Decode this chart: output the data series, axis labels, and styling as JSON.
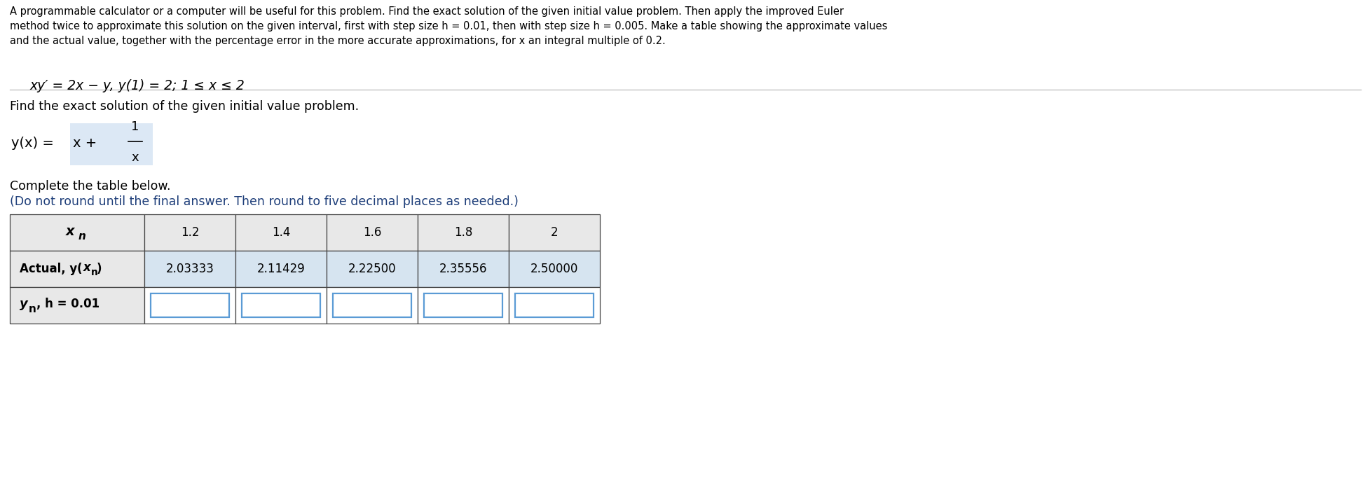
{
  "background_color": "#ffffff",
  "paragraph_text": "A programmable calculator or a computer will be useful for this problem. Find the exact solution of the given initial value problem. Then apply the improved Euler\nmethod twice to approximate this solution on the given interval, first with step size h = 0.01, then with step size h = 0.005. Make a table showing the approximate values\nand the actual value, together with the percentage error in the more accurate approximations, for x an integral multiple of 0.2.",
  "equation_text": "xy′ = 2x − y, y(1) = 2; 1 ≤ x ≤ 2",
  "find_text": "Find the exact solution of the given initial value problem.",
  "complete_text": "Complete the table below.",
  "round_text": "(Do not round until the final answer. Then round to five decimal places as needed.)",
  "table_col_headers": [
    "1.2",
    "1.4",
    "1.6",
    "1.8",
    "2"
  ],
  "row1_values": [
    "2.03333",
    "2.11429",
    "2.22500",
    "2.35556",
    "2.50000"
  ],
  "header_bg": "#e8e8e8",
  "actual_bg": "#d6e4f0",
  "input_border": "#5b9bd5",
  "input_bg": "#ffffff",
  "round_text_color": "#1f3f7a",
  "frac_bg": "#dce8f5",
  "para_fontsize": 10.5,
  "eq_fontsize": 13.5,
  "find_fontsize": 12.5,
  "formula_fontsize": 14.0,
  "complete_fontsize": 12.5,
  "table_fontsize": 12.0
}
